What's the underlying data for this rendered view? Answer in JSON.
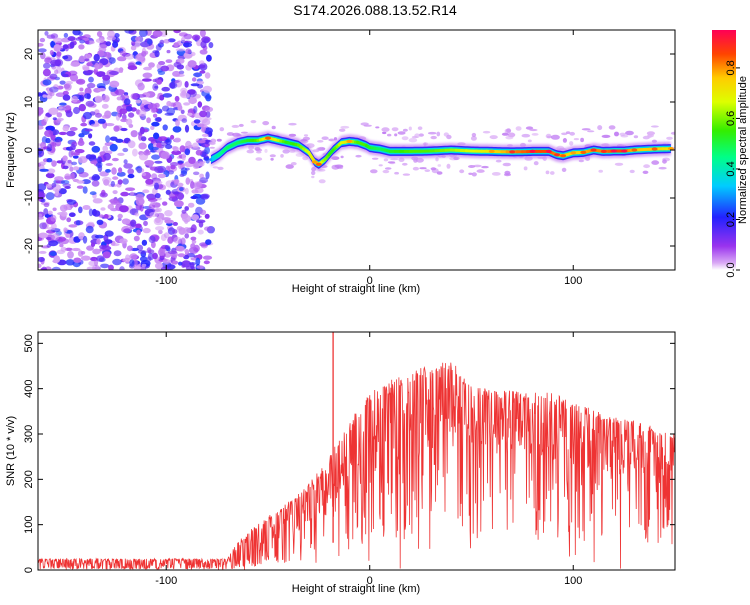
{
  "title": "S174.2026.088.13.52.R14",
  "chart_data": [
    {
      "type": "heatmap",
      "xlabel": "Height of straight line (km)",
      "ylabel": "Frequency (Hz)",
      "xlim": [
        -163,
        150
      ],
      "ylim": [
        -25,
        25
      ],
      "xticks": [
        -100,
        0,
        100
      ],
      "yticks": [
        -20,
        -10,
        0,
        10,
        20
      ],
      "colorbar": {
        "label": "Normalized spectral amplitude",
        "range": [
          0.0,
          0.95
        ],
        "ticks": [
          0.0,
          0.2,
          0.4,
          0.6,
          0.8
        ],
        "colormap": "rainbow (magenta-blue-cyan-green-yellow-red)"
      },
      "noise_region_x": [
        -163,
        -78
      ],
      "ridge": {
        "description": "high-amplitude frequency ridge",
        "x": [
          -78,
          -74,
          -70,
          -65,
          -60,
          -55,
          -50,
          -45,
          -40,
          -35,
          -30,
          -27,
          -25,
          -22,
          -18,
          -14,
          -10,
          -6,
          -2,
          0,
          5,
          10,
          20,
          30,
          40,
          50,
          60,
          70,
          80,
          88,
          92,
          95,
          100,
          105,
          110,
          115,
          120,
          125,
          130,
          140,
          148
        ],
        "y": [
          -2,
          -1,
          0.5,
          1.5,
          2,
          2,
          2.5,
          2,
          1.5,
          1,
          -0.5,
          -2.5,
          -3,
          -2,
          0,
          1.5,
          1.8,
          1.6,
          1,
          0.5,
          0.2,
          -0.3,
          -0.3,
          -0.2,
          0,
          -0.2,
          -0.3,
          -0.4,
          -0.3,
          -0.3,
          -1,
          -1.2,
          -0.6,
          -0.5,
          0,
          -0.3,
          -0.2,
          -0.2,
          0,
          0.2,
          0.3
        ],
        "amplitude": [
          0.3,
          0.45,
          0.5,
          0.5,
          0.55,
          0.6,
          0.8,
          0.7,
          0.55,
          0.6,
          0.7,
          0.75,
          0.8,
          0.65,
          0.55,
          0.7,
          0.75,
          0.6,
          0.6,
          0.55,
          0.5,
          0.55,
          0.6,
          0.6,
          0.65,
          0.7,
          0.75,
          0.85,
          0.9,
          0.9,
          0.85,
          0.8,
          0.75,
          0.8,
          0.85,
          0.85,
          0.9,
          0.9,
          0.8,
          0.8,
          0.75
        ]
      }
    },
    {
      "type": "line",
      "xlabel": "Height of straight line (km)",
      "ylabel": "SNR (10 * v/v)",
      "xlim": [
        -163,
        150
      ],
      "ylim": [
        0,
        525
      ],
      "xticks": [
        -100,
        0,
        100
      ],
      "yticks": [
        0,
        100,
        200,
        300,
        400,
        500
      ],
      "color": "#ee3333",
      "spike": {
        "x": -18,
        "y": 525
      },
      "envelope_upper": {
        "x": [
          -163,
          -70,
          -66,
          -60,
          -50,
          -40,
          -30,
          -20,
          -10,
          0,
          10,
          20,
          30,
          40,
          45,
          50,
          60,
          70,
          80,
          90,
          100,
          110,
          120,
          130,
          140,
          150
        ],
        "y": [
          25,
          25,
          55,
          85,
          120,
          150,
          190,
          250,
          330,
          390,
          420,
          440,
          460,
          470,
          430,
          405,
          400,
          395,
          395,
          390,
          370,
          355,
          340,
          330,
          315,
          300
        ]
      },
      "envelope_lower": {
        "x": [
          -163,
          -70,
          -66,
          -60,
          -50,
          -40,
          -30,
          -20,
          -10,
          0,
          10,
          20,
          30,
          40,
          50,
          60,
          70,
          80,
          90,
          100,
          110,
          120,
          130,
          140,
          150
        ],
        "y": [
          5,
          5,
          10,
          20,
          40,
          55,
          70,
          110,
          150,
          190,
          230,
          260,
          280,
          290,
          280,
          270,
          260,
          250,
          240,
          225,
          215,
          210,
          200,
          190,
          185
        ]
      }
    }
  ]
}
